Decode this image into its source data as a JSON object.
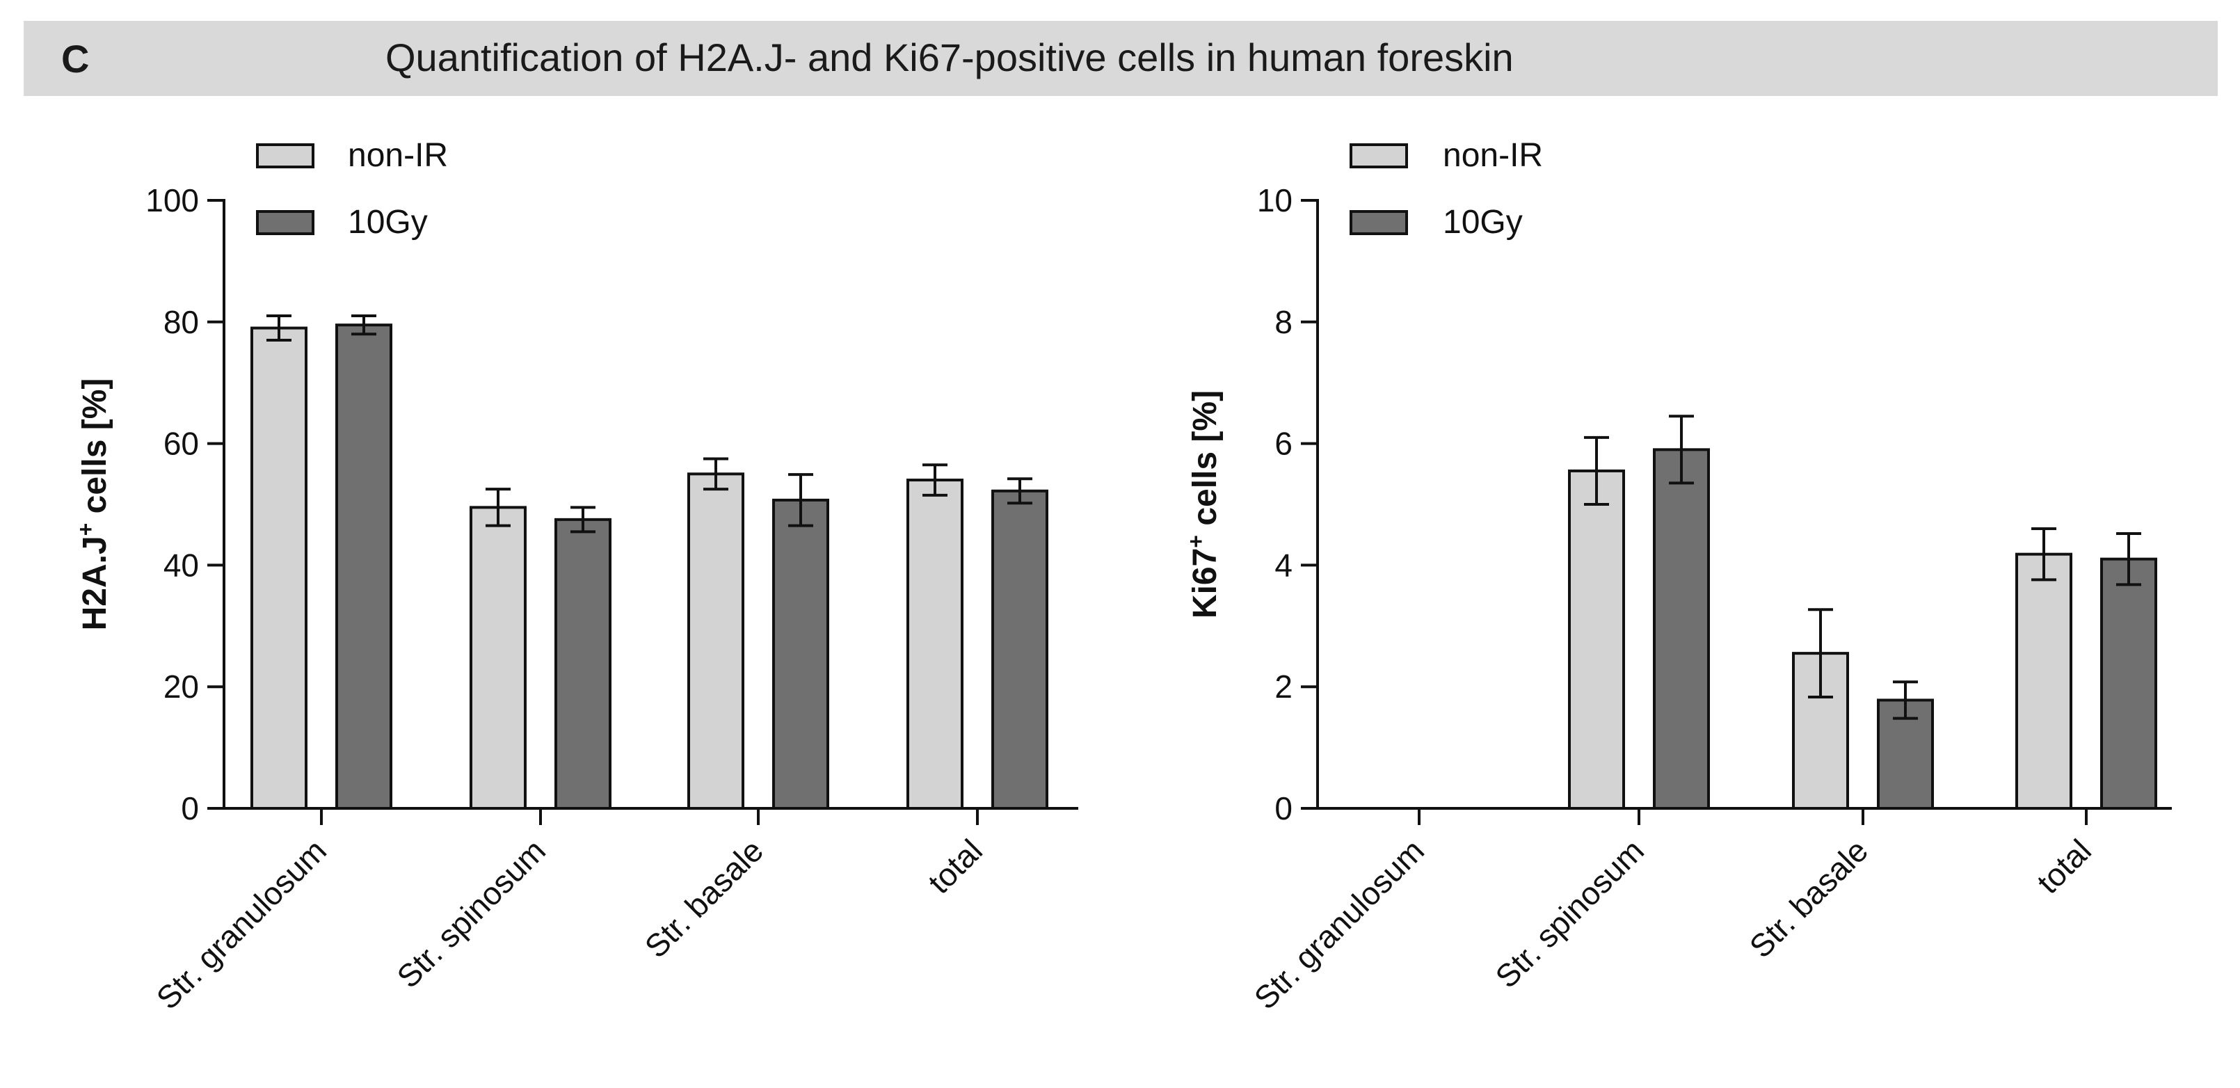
{
  "panel_label": "C",
  "title": "Quantification of H2A.J- and Ki67-positive cells in human foreskin",
  "colors": {
    "non_ir": "#d3d3d3",
    "gy10": "#707070",
    "stroke": "#111111",
    "header_bg": "#d9d9d9"
  },
  "chart_data": [
    {
      "type": "bar",
      "ylabel_main": "H2A.J",
      "ylabel_sup": "+",
      "ylabel_tail": " cells [%]",
      "categories": [
        "Str. granulosum",
        "Str. spinosum",
        "Str. basale",
        "total"
      ],
      "series": [
        {
          "name": "non-IR",
          "values": [
            79,
            49.5,
            55,
            54
          ],
          "errors": [
            2,
            3,
            2.5,
            2.5
          ]
        },
        {
          "name": "10Gy",
          "values": [
            79.5,
            47.5,
            50.7,
            52.2
          ],
          "errors": [
            1.5,
            2,
            4.2,
            2
          ]
        }
      ],
      "ylim": [
        0,
        100
      ],
      "yticks": [
        0,
        20,
        40,
        60,
        80,
        100
      ],
      "ytick_labels": [
        "0",
        "20",
        "40",
        "60",
        "80",
        "100"
      ],
      "legend": "top-left"
    },
    {
      "type": "bar",
      "ylabel_main": "Ki67",
      "ylabel_sup": "+",
      "ylabel_tail": " cells [%]",
      "categories": [
        "Str. granulosum",
        "Str. spinosum",
        "Str. basale",
        "total"
      ],
      "series": [
        {
          "name": "non-IR",
          "values": [
            0,
            5.55,
            2.55,
            4.18
          ],
          "errors": [
            0,
            0.55,
            0.72,
            0.42
          ]
        },
        {
          "name": "10Gy",
          "values": [
            0,
            5.9,
            1.78,
            4.1
          ],
          "errors": [
            0,
            0.55,
            0.3,
            0.42
          ]
        }
      ],
      "ylim": [
        0,
        10
      ],
      "yticks": [
        0,
        2,
        4,
        6,
        8,
        10
      ],
      "ytick_labels": [
        "0",
        "2",
        "4",
        "6",
        "8",
        "10"
      ],
      "legend": "top-left"
    }
  ]
}
